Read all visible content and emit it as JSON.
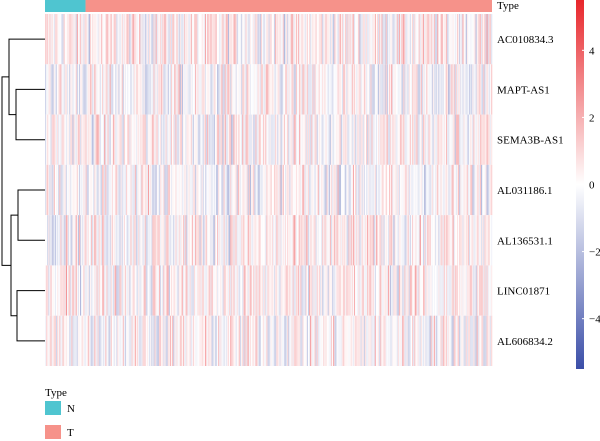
{
  "chart_data": {
    "type": "heatmap",
    "annotation": {
      "label": "Type",
      "groups": [
        {
          "name": "N",
          "color": "#4fc5d0",
          "count": 37
        },
        {
          "name": "T",
          "color": "#f6928a",
          "count": 371
        }
      ]
    },
    "rows": [
      "AC010834.3",
      "MAPT-AS1",
      "SEMA3B-AS1",
      "AL031186.1",
      "AL136531.1",
      "LINC01871",
      "AL606834.2"
    ],
    "row_tint": [
      0.25,
      -0.1,
      0.15,
      -0.05,
      0.2,
      0.25,
      0.1
    ],
    "color_scale": {
      "low": "#3b4ea8",
      "mid": "#ffffff",
      "high": "#e8262b",
      "range": [
        -5.5,
        5.5
      ],
      "ticks": [
        {
          "value": 4,
          "label": "4"
        },
        {
          "value": 2,
          "label": "2"
        },
        {
          "value": 0,
          "label": "0"
        },
        {
          "value": -2,
          "label": "−2"
        },
        {
          "value": -4,
          "label": "−4"
        }
      ]
    },
    "legend": {
      "title": "Type",
      "items": [
        {
          "label": "N",
          "color": "#4fc5d0"
        },
        {
          "label": "T",
          "color": "#f6928a"
        }
      ]
    }
  }
}
